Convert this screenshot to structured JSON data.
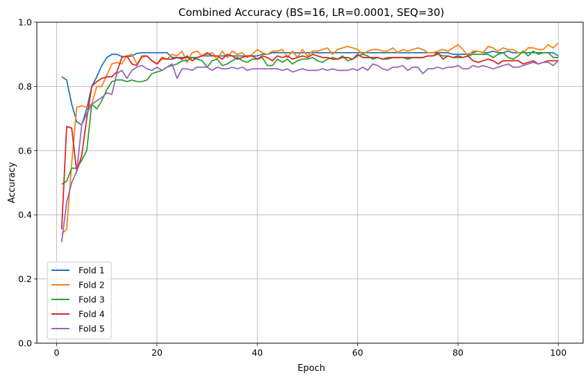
{
  "chart_data": {
    "type": "line",
    "title": "Combined Accuracy (BS=16, LR=0.0001, SEQ=30)",
    "xlabel": "Epoch",
    "ylabel": "Accuracy",
    "xlim": [
      -3.95,
      104.95
    ],
    "ylim": [
      0.0,
      1.0
    ],
    "xticks": [
      0,
      20,
      40,
      60,
      80,
      100
    ],
    "yticks": [
      0.0,
      0.2,
      0.4,
      0.6,
      0.8,
      1.0
    ],
    "ytick_labels": [
      "0.0",
      "0.2",
      "0.4",
      "0.6",
      "0.8",
      "1.0"
    ],
    "grid": true,
    "legend_position": "lower-left",
    "x": [
      1,
      2,
      3,
      4,
      5,
      6,
      7,
      8,
      9,
      10,
      11,
      12,
      13,
      14,
      15,
      16,
      17,
      18,
      19,
      20,
      21,
      22,
      23,
      24,
      25,
      26,
      27,
      28,
      29,
      30,
      31,
      32,
      33,
      34,
      35,
      36,
      37,
      38,
      39,
      40,
      41,
      42,
      43,
      44,
      45,
      46,
      47,
      48,
      49,
      50,
      51,
      52,
      53,
      54,
      55,
      56,
      57,
      58,
      59,
      60,
      61,
      62,
      63,
      64,
      65,
      66,
      67,
      68,
      69,
      70,
      71,
      72,
      73,
      74,
      75,
      76,
      77,
      78,
      79,
      80,
      81,
      82,
      83,
      84,
      85,
      86,
      87,
      88,
      89,
      90,
      91,
      92,
      93,
      94,
      95,
      96,
      97,
      98,
      99,
      100
    ],
    "series": [
      {
        "name": "Fold 1",
        "color": "#1f77b4",
        "values": [
          0.83,
          0.82,
          0.745,
          0.69,
          0.68,
          0.73,
          0.8,
          0.83,
          0.865,
          0.89,
          0.9,
          0.9,
          0.893,
          0.893,
          0.895,
          0.903,
          0.905,
          0.905,
          0.905,
          0.905,
          0.905,
          0.905,
          0.89,
          0.89,
          0.89,
          0.89,
          0.89,
          0.89,
          0.895,
          0.895,
          0.895,
          0.895,
          0.895,
          0.895,
          0.895,
          0.895,
          0.895,
          0.895,
          0.895,
          0.895,
          0.9,
          0.9,
          0.905,
          0.905,
          0.905,
          0.905,
          0.905,
          0.905,
          0.905,
          0.905,
          0.905,
          0.905,
          0.905,
          0.905,
          0.905,
          0.905,
          0.905,
          0.905,
          0.905,
          0.905,
          0.905,
          0.905,
          0.905,
          0.905,
          0.905,
          0.905,
          0.905,
          0.905,
          0.905,
          0.905,
          0.905,
          0.905,
          0.905,
          0.905,
          0.905,
          0.905,
          0.905,
          0.905,
          0.9,
          0.9,
          0.9,
          0.9,
          0.905,
          0.91,
          0.905,
          0.905,
          0.91,
          0.905,
          0.905,
          0.91,
          0.905,
          0.905,
          0.905,
          0.905,
          0.905,
          0.905,
          0.905,
          0.905,
          0.905,
          0.895
        ]
      },
      {
        "name": "Fold 2",
        "color": "#ff7f0e",
        "values": [
          0.34,
          0.355,
          0.56,
          0.735,
          0.74,
          0.735,
          0.745,
          0.8,
          0.8,
          0.835,
          0.87,
          0.875,
          0.87,
          0.895,
          0.9,
          0.87,
          0.89,
          0.895,
          0.88,
          0.87,
          0.885,
          0.885,
          0.9,
          0.895,
          0.91,
          0.875,
          0.905,
          0.91,
          0.895,
          0.9,
          0.905,
          0.885,
          0.91,
          0.89,
          0.91,
          0.9,
          0.905,
          0.89,
          0.9,
          0.915,
          0.905,
          0.9,
          0.91,
          0.91,
          0.915,
          0.89,
          0.91,
          0.89,
          0.915,
          0.895,
          0.91,
          0.91,
          0.915,
          0.92,
          0.9,
          0.915,
          0.92,
          0.925,
          0.92,
          0.915,
          0.9,
          0.91,
          0.915,
          0.915,
          0.91,
          0.91,
          0.92,
          0.905,
          0.915,
          0.91,
          0.915,
          0.92,
          0.915,
          0.905,
          0.905,
          0.91,
          0.915,
          0.91,
          0.92,
          0.93,
          0.915,
          0.895,
          0.91,
          0.91,
          0.905,
          0.925,
          0.92,
          0.91,
          0.92,
          0.915,
          0.915,
          0.905,
          0.905,
          0.92,
          0.92,
          0.915,
          0.915,
          0.93,
          0.92,
          0.935
        ]
      },
      {
        "name": "Fold 3",
        "color": "#2ca02c",
        "values": [
          0.495,
          0.505,
          0.545,
          0.545,
          0.57,
          0.6,
          0.745,
          0.73,
          0.755,
          0.79,
          0.815,
          0.82,
          0.82,
          0.815,
          0.82,
          0.815,
          0.815,
          0.82,
          0.84,
          0.845,
          0.85,
          0.86,
          0.865,
          0.87,
          0.88,
          0.88,
          0.89,
          0.885,
          0.88,
          0.86,
          0.88,
          0.885,
          0.865,
          0.87,
          0.88,
          0.89,
          0.88,
          0.875,
          0.885,
          0.885,
          0.89,
          0.865,
          0.865,
          0.885,
          0.875,
          0.885,
          0.87,
          0.88,
          0.885,
          0.885,
          0.89,
          0.88,
          0.875,
          0.885,
          0.89,
          0.885,
          0.895,
          0.88,
          0.885,
          0.895,
          0.9,
          0.895,
          0.885,
          0.89,
          0.885,
          0.885,
          0.89,
          0.89,
          0.89,
          0.885,
          0.89,
          0.89,
          0.89,
          0.895,
          0.895,
          0.9,
          0.895,
          0.895,
          0.89,
          0.89,
          0.89,
          0.895,
          0.9,
          0.9,
          0.9,
          0.9,
          0.89,
          0.9,
          0.905,
          0.89,
          0.885,
          0.895,
          0.91,
          0.895,
          0.91,
          0.9,
          0.905,
          0.905,
          0.89,
          0.89
        ]
      },
      {
        "name": "Fold 4",
        "color": "#d62728",
        "values": [
          0.355,
          0.675,
          0.67,
          0.535,
          0.585,
          0.7,
          0.8,
          0.815,
          0.825,
          0.83,
          0.83,
          0.845,
          0.89,
          0.895,
          0.87,
          0.865,
          0.895,
          0.895,
          0.88,
          0.87,
          0.89,
          0.885,
          0.885,
          0.89,
          0.885,
          0.895,
          0.88,
          0.89,
          0.895,
          0.905,
          0.895,
          0.895,
          0.885,
          0.9,
          0.895,
          0.885,
          0.89,
          0.895,
          0.895,
          0.885,
          0.895,
          0.89,
          0.88,
          0.895,
          0.89,
          0.895,
          0.885,
          0.89,
          0.895,
          0.89,
          0.9,
          0.895,
          0.89,
          0.89,
          0.885,
          0.885,
          0.89,
          0.89,
          0.885,
          0.9,
          0.89,
          0.89,
          0.89,
          0.89,
          0.885,
          0.89,
          0.89,
          0.89,
          0.89,
          0.89,
          0.89,
          0.89,
          0.89,
          0.895,
          0.895,
          0.905,
          0.885,
          0.895,
          0.89,
          0.895,
          0.89,
          0.895,
          0.88,
          0.875,
          0.88,
          0.885,
          0.88,
          0.87,
          0.88,
          0.88,
          0.88,
          0.88,
          0.87,
          0.875,
          0.88,
          0.87,
          0.875,
          0.88,
          0.88,
          0.88
        ]
      },
      {
        "name": "Fold 5",
        "color": "#9467bd",
        "values": [
          0.315,
          0.44,
          0.5,
          0.535,
          0.68,
          0.715,
          0.745,
          0.755,
          0.765,
          0.78,
          0.775,
          0.84,
          0.85,
          0.825,
          0.85,
          0.86,
          0.865,
          0.855,
          0.85,
          0.86,
          0.85,
          0.86,
          0.87,
          0.825,
          0.855,
          0.855,
          0.85,
          0.86,
          0.86,
          0.86,
          0.85,
          0.86,
          0.855,
          0.855,
          0.86,
          0.855,
          0.86,
          0.85,
          0.855,
          0.855,
          0.855,
          0.855,
          0.855,
          0.855,
          0.85,
          0.855,
          0.845,
          0.85,
          0.855,
          0.85,
          0.85,
          0.85,
          0.855,
          0.85,
          0.855,
          0.85,
          0.85,
          0.85,
          0.855,
          0.85,
          0.86,
          0.85,
          0.87,
          0.865,
          0.855,
          0.85,
          0.86,
          0.86,
          0.865,
          0.85,
          0.86,
          0.86,
          0.84,
          0.855,
          0.855,
          0.86,
          0.855,
          0.86,
          0.86,
          0.865,
          0.855,
          0.855,
          0.865,
          0.86,
          0.865,
          0.86,
          0.855,
          0.86,
          0.865,
          0.87,
          0.86,
          0.86,
          0.865,
          0.87,
          0.875,
          0.87,
          0.875,
          0.875,
          0.865,
          0.88
        ]
      }
    ]
  }
}
